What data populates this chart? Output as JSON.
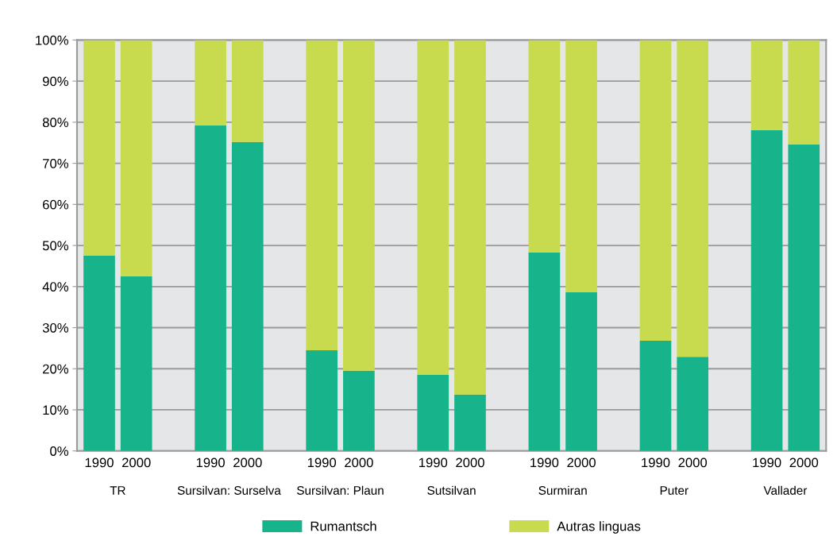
{
  "chart_data": {
    "type": "bar",
    "stacked": true,
    "categories": [
      "1990",
      "2000",
      null,
      "1990",
      "2000",
      null,
      "1990",
      "2000",
      null,
      "1990",
      "2000",
      null,
      "1990",
      "2000",
      null,
      "1990",
      "2000",
      null,
      "1990",
      "2000"
    ],
    "series": [
      {
        "name": "Rumantsch",
        "color": "#17b48c",
        "values": [
          47.5,
          42.5,
          null,
          79.2,
          75.2,
          null,
          24.5,
          19.5,
          null,
          18.5,
          13.7,
          null,
          48.3,
          38.6,
          null,
          26.8,
          22.9,
          null,
          78.1,
          74.6
        ]
      },
      {
        "name": "Autras linguas",
        "color": "#c8db4e",
        "values": [
          52.5,
          57.5,
          null,
          20.8,
          24.8,
          null,
          75.5,
          80.5,
          null,
          81.5,
          86.3,
          null,
          51.7,
          61.4,
          null,
          73.2,
          77.1,
          null,
          21.9,
          25.4
        ]
      }
    ],
    "annotations": [
      "TR",
      "Sursilvan: Surselva",
      "Sursilvan: Plaun",
      "Sutsilvan",
      "Surmiran",
      "Puter",
      "Vallader"
    ],
    "ylim": [
      0,
      100
    ],
    "yticks": [
      {
        "value": 0,
        "label": "0%"
      },
      {
        "value": 10,
        "label": "10%"
      },
      {
        "value": 20,
        "label": "20%"
      },
      {
        "value": 30,
        "label": "30%"
      },
      {
        "value": 40,
        "label": "40%"
      },
      {
        "value": 50,
        "label": "50%"
      },
      {
        "value": 60,
        "label": "60%"
      },
      {
        "value": 70,
        "label": "70%"
      },
      {
        "value": 80,
        "label": "80%"
      },
      {
        "value": 90,
        "label": "90%"
      },
      {
        "value": 100,
        "label": "100%"
      }
    ],
    "grid": "y",
    "legend": "bottom"
  }
}
